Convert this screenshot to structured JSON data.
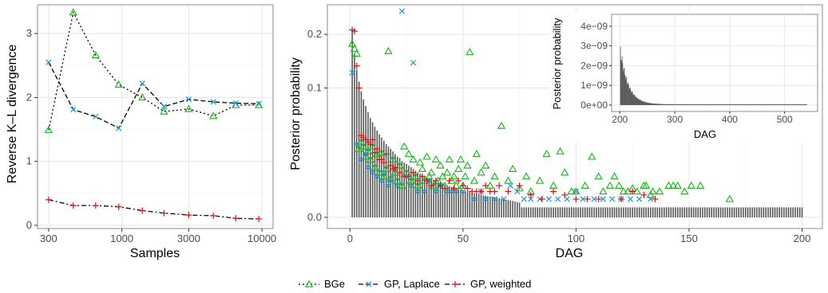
{
  "chart_data": [
    {
      "id": "kl",
      "type": "line",
      "title": "",
      "xlabel": "Samples",
      "ylabel": "Reverse K–L divergence",
      "x_scale": "log",
      "xlim": [
        250,
        12000
      ],
      "ylim": [
        -0.05,
        3.45
      ],
      "x_ticks": [
        300,
        1000,
        3000,
        10000
      ],
      "x_tick_labels": [
        "300",
        "1000",
        "3000",
        "10000"
      ],
      "y_ticks": [
        0,
        1,
        2,
        3
      ],
      "y_tick_labels": [
        "0",
        "1",
        "2",
        "3"
      ],
      "x": [
        300,
        450,
        650,
        950,
        1400,
        2000,
        3000,
        4500,
        6500,
        9500
      ],
      "series": [
        {
          "name": "BGe",
          "values": [
            1.49,
            3.33,
            2.66,
            2.2,
            2.0,
            1.78,
            1.82,
            1.71,
            1.88,
            1.88
          ]
        },
        {
          "name": "GP, Laplace",
          "values": [
            2.55,
            1.81,
            1.7,
            1.52,
            2.22,
            1.86,
            1.97,
            1.93,
            1.91,
            1.9
          ]
        },
        {
          "name": "GP, weighted",
          "values": [
            0.4,
            0.31,
            0.31,
            0.29,
            0.23,
            0.19,
            0.16,
            0.15,
            0.11,
            0.1
          ]
        }
      ],
      "grid": true
    },
    {
      "id": "dag",
      "type": "bar",
      "title": "",
      "xlabel": "DAG",
      "ylabel": "Posterior probability",
      "y_scale": "sqrt",
      "xlim": [
        -10,
        209
      ],
      "ylim": [
        0,
        0.27
      ],
      "x_ticks": [
        0,
        50,
        100,
        150,
        200
      ],
      "x_tick_labels": [
        "0",
        "50",
        "100",
        "150",
        "200"
      ],
      "y_ticks": [
        0.0,
        0.1,
        0.2
      ],
      "y_tick_labels": [
        "0.0",
        "0.1",
        "0.2"
      ],
      "bars": [
        0.21,
        0.16,
        0.13,
        0.11,
        0.095,
        0.083,
        0.074,
        0.066,
        0.059,
        0.054,
        0.049,
        0.045,
        0.041,
        0.038,
        0.035,
        0.032,
        0.03,
        0.028,
        0.026,
        0.024,
        0.022,
        0.021,
        0.019,
        0.018,
        0.017,
        0.016,
        0.015,
        0.014,
        0.013,
        0.012,
        0.0115,
        0.011,
        0.0104,
        0.0098,
        0.0093,
        0.0088,
        0.0083,
        0.0079,
        0.0075,
        0.0071,
        0.0068,
        0.0064,
        0.0061,
        0.0058,
        0.0055,
        0.0053,
        0.005,
        0.0048,
        0.0046,
        0.0044,
        0.0042,
        0.004,
        0.0038,
        0.0036,
        0.0035,
        0.0033,
        0.0032,
        0.003,
        0.0029,
        0.0028,
        0.0027,
        0.0026,
        0.0025,
        0.0024,
        0.0023,
        0.0022,
        0.0021,
        0.002,
        0.0019,
        0.0018,
        0.0017,
        0.0016,
        0.0015,
        0.0014,
        0.0013
      ],
      "bar_tail": {
        "start": 76,
        "end": 200,
        "value": 0.0006
      },
      "points": {
        "BGe": [
          [
            1,
            0.18
          ],
          [
            2,
            0.17
          ],
          [
            3,
            0.16
          ],
          [
            4,
            0.028
          ],
          [
            5,
            0.034
          ],
          [
            6,
            0.03
          ],
          [
            7,
            0.022
          ],
          [
            8,
            0.026
          ],
          [
            9,
            0.02
          ],
          [
            10,
            0.03
          ],
          [
            11,
            0.015
          ],
          [
            12,
            0.024
          ],
          [
            13,
            0.012
          ],
          [
            14,
            0.025
          ],
          [
            15,
            0.01
          ],
          [
            16,
            0.014
          ],
          [
            17,
            0.165
          ],
          [
            18,
            0.009
          ],
          [
            19,
            0.02
          ],
          [
            20,
            0.012
          ],
          [
            21,
            0.008
          ],
          [
            22,
            0.016
          ],
          [
            23,
            0.006
          ],
          [
            24,
            0.03
          ],
          [
            25,
            0.012
          ],
          [
            26,
            0.024
          ],
          [
            27,
            0.008
          ],
          [
            28,
            0.02
          ],
          [
            29,
            0.01
          ],
          [
            30,
            0.006
          ],
          [
            31,
            0.018
          ],
          [
            32,
            0.014
          ],
          [
            33,
            0.008
          ],
          [
            34,
            0.022
          ],
          [
            35,
            0.01
          ],
          [
            36,
            0.012
          ],
          [
            37,
            0.006
          ],
          [
            38,
            0.02
          ],
          [
            39,
            0.008
          ],
          [
            40,
            0.016
          ],
          [
            41,
            0.01
          ],
          [
            42,
            0.006
          ],
          [
            43,
            0.012
          ],
          [
            44,
            0.02
          ],
          [
            45,
            0.008
          ],
          [
            46,
            0.01
          ],
          [
            47,
            0.006
          ],
          [
            48,
            0.014
          ],
          [
            49,
            0.02
          ],
          [
            50,
            0.006
          ],
          [
            51,
            0.01
          ],
          [
            52,
            0.016
          ],
          [
            53,
            0.163
          ],
          [
            55,
            0.008
          ],
          [
            56,
            0.024
          ],
          [
            58,
            0.012
          ],
          [
            60,
            0.016
          ],
          [
            62,
            0.006
          ],
          [
            64,
            0.01
          ],
          [
            67,
            0.05
          ],
          [
            70,
            0.008
          ],
          [
            72,
            0.014
          ],
          [
            75,
            0.005
          ],
          [
            78,
            0.01
          ],
          [
            80,
            0.004
          ],
          [
            84,
            0.008
          ],
          [
            87,
            0.024
          ],
          [
            90,
            0.006
          ],
          [
            93,
            0.026
          ],
          [
            95,
            0.012
          ],
          [
            98,
            0.004
          ],
          [
            100,
            0.004
          ],
          [
            104,
            0.006
          ],
          [
            107,
            0.022
          ],
          [
            110,
            0.01
          ],
          [
            112,
            0.004
          ],
          [
            115,
            0.006
          ],
          [
            117,
            0.01
          ],
          [
            119,
            0.006
          ],
          [
            121,
            0.004
          ],
          [
            123,
            0.004
          ],
          [
            125,
            0.005
          ],
          [
            127,
            0.004
          ],
          [
            130,
            0.006
          ],
          [
            131,
            0.006
          ],
          [
            133,
            0.003
          ],
          [
            134,
            0.004
          ],
          [
            137,
            0.004
          ],
          [
            141,
            0.006
          ],
          [
            143,
            0.006
          ],
          [
            145,
            0.006
          ],
          [
            148,
            0.004
          ],
          [
            151,
            0.006
          ],
          [
            155,
            0.006
          ],
          [
            168,
            0.002
          ]
        ],
        "GP, Laplace": [
          [
            1,
            0.125
          ],
          [
            3,
            0.032
          ],
          [
            5,
            0.02
          ],
          [
            7,
            0.024
          ],
          [
            8,
            0.015
          ],
          [
            10,
            0.012
          ],
          [
            12,
            0.01
          ],
          [
            14,
            0.008
          ],
          [
            15,
            0.012
          ],
          [
            17,
            0.006
          ],
          [
            18,
            0.008
          ],
          [
            20,
            0.014
          ],
          [
            21,
            0.006
          ],
          [
            23,
            0.254
          ],
          [
            25,
            0.01
          ],
          [
            27,
            0.006
          ],
          [
            28,
            0.143
          ],
          [
            30,
            0.004
          ],
          [
            33,
            0.004
          ],
          [
            35,
            0.008
          ],
          [
            38,
            0.004
          ],
          [
            40,
            0.006
          ],
          [
            43,
            0.004
          ],
          [
            45,
            0.004
          ],
          [
            47,
            0.004
          ],
          [
            50,
            0.004
          ],
          [
            55,
            0.002
          ],
          [
            58,
            0.004
          ],
          [
            60,
            0.002
          ],
          [
            64,
            0.002
          ],
          [
            68,
            0.002
          ],
          [
            71,
            0.006
          ],
          [
            74,
            0.004
          ],
          [
            77,
            0.002
          ],
          [
            80,
            0.002
          ],
          [
            84,
            0.002
          ],
          [
            88,
            0.002
          ],
          [
            92,
            0.002
          ],
          [
            96,
            0.002
          ],
          [
            100,
            0.004
          ],
          [
            103,
            0.002
          ],
          [
            108,
            0.002
          ],
          [
            112,
            0.002
          ],
          [
            116,
            0.002
          ],
          [
            120,
            0.002
          ],
          [
            124,
            0.002
          ],
          [
            128,
            0.002
          ],
          [
            133,
            0.002
          ]
        ],
        "GP, weighted": [
          [
            1,
            0.21
          ],
          [
            2,
            0.207
          ],
          [
            3,
            0.137
          ],
          [
            4,
            0.1
          ],
          [
            5,
            0.04
          ],
          [
            6,
            0.038
          ],
          [
            7,
            0.036
          ],
          [
            8,
            0.034
          ],
          [
            9,
            0.032
          ],
          [
            10,
            0.036
          ],
          [
            11,
            0.025
          ],
          [
            12,
            0.028
          ],
          [
            13,
            0.02
          ],
          [
            14,
            0.02
          ],
          [
            15,
            0.018
          ],
          [
            16,
            0.024
          ],
          [
            18,
            0.016
          ],
          [
            19,
            0.014
          ],
          [
            20,
            0.015
          ],
          [
            22,
            0.012
          ],
          [
            24,
            0.01
          ],
          [
            26,
            0.01
          ],
          [
            28,
            0.012
          ],
          [
            30,
            0.008
          ],
          [
            32,
            0.01
          ],
          [
            34,
            0.008
          ],
          [
            36,
            0.006
          ],
          [
            38,
            0.008
          ],
          [
            40,
            0.006
          ],
          [
            42,
            0.005
          ],
          [
            44,
            0.008
          ],
          [
            46,
            0.005
          ],
          [
            48,
            0.008
          ],
          [
            50,
            0.006
          ],
          [
            52,
            0.005
          ],
          [
            54,
            0.004
          ],
          [
            56,
            0.004
          ],
          [
            58,
            0.004
          ],
          [
            60,
            0.006
          ],
          [
            62,
            0.004
          ],
          [
            64,
            0.004
          ],
          [
            66,
            0.006
          ],
          [
            70,
            0.004
          ],
          [
            75,
            0.006
          ],
          [
            80,
            0.003
          ],
          [
            85,
            0.002
          ],
          [
            90,
            0.004
          ],
          [
            95,
            0.003
          ],
          [
            100,
            0.002
          ],
          [
            105,
            0.002
          ],
          [
            110,
            0.002
          ],
          [
            120,
            0.002
          ],
          [
            125,
            0.004
          ],
          [
            130,
            0.003
          ],
          [
            135,
            0.002
          ]
        ]
      },
      "grid": true
    },
    {
      "id": "inset",
      "type": "bar",
      "title": "",
      "xlabel": "DAG",
      "ylabel": "Posterior probability",
      "xlim": [
        185,
        560
      ],
      "ylim": [
        0,
        4.6e-09
      ],
      "x_ticks": [
        200,
        300,
        400,
        500
      ],
      "x_tick_labels": [
        "200",
        "300",
        "400",
        "500"
      ],
      "y_ticks": [
        0,
        1e-09,
        2e-09,
        3e-09,
        4e-09
      ],
      "y_tick_labels": [
        "0e+00",
        "1e−09",
        "2e−09",
        "3e−09",
        "4e−09"
      ],
      "bar_range": [
        201,
        540
      ],
      "decay": {
        "peak": 2.75e-09,
        "rate": 0.07,
        "floor": 4e-11
      },
      "grid": true
    }
  ],
  "legend": {
    "position": "bottom",
    "items": [
      {
        "label": "BGe",
        "color": "#22bb22",
        "marker": "triangle",
        "dash": "2,3"
      },
      {
        "label": "GP, Laplace",
        "color": "#1b9ad6",
        "marker": "x",
        "dash": "6,3"
      },
      {
        "label": "GP, weighted",
        "color": "#dd1111",
        "marker": "plus",
        "dash": "6,3,2,3"
      }
    ]
  },
  "colors": {
    "BGe": "#22bb22",
    "GP, Laplace": "#1b9ad6",
    "GP, weighted": "#dd1111",
    "bars": "#555555",
    "grid": "#e6e6e6",
    "panel_border": "#8c8c8c"
  }
}
